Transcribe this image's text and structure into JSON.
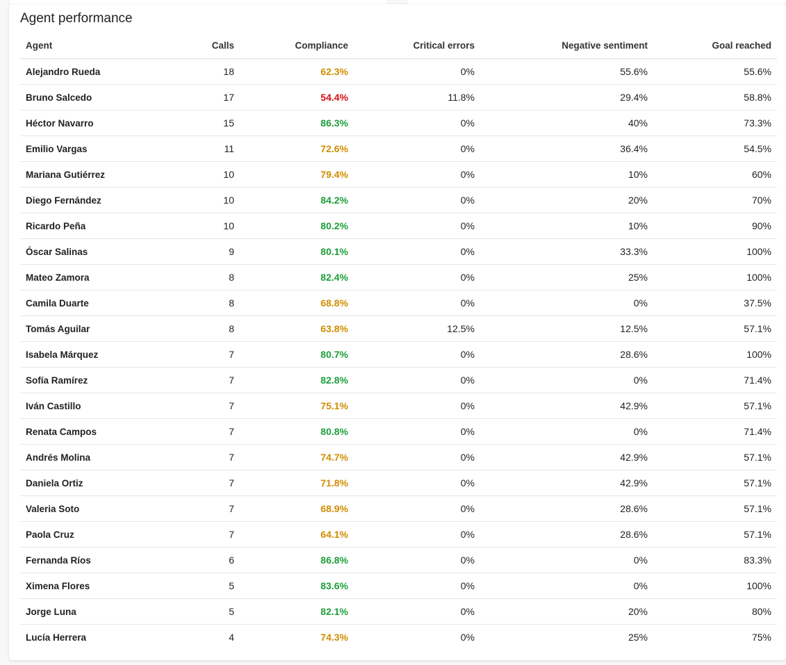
{
  "title": "Agent performance",
  "colors": {
    "good": "#1e9e3a",
    "warn": "#d18d00",
    "bad": "#d50f14"
  },
  "columns": [
    "Agent",
    "Calls",
    "Compliance",
    "Critical errors",
    "Negative sentiment",
    "Goal reached"
  ],
  "rows": [
    {
      "agent": "Alejandro Rueda",
      "calls": "18",
      "compliance": "62.3%",
      "status": "warn",
      "critical": "0%",
      "negative": "55.6%",
      "goal": "55.6%"
    },
    {
      "agent": "Bruno Salcedo",
      "calls": "17",
      "compliance": "54.4%",
      "status": "bad",
      "critical": "11.8%",
      "negative": "29.4%",
      "goal": "58.8%"
    },
    {
      "agent": "Héctor Navarro",
      "calls": "15",
      "compliance": "86.3%",
      "status": "good",
      "critical": "0%",
      "negative": "40%",
      "goal": "73.3%"
    },
    {
      "agent": "Emilio Vargas",
      "calls": "11",
      "compliance": "72.6%",
      "status": "warn",
      "critical": "0%",
      "negative": "36.4%",
      "goal": "54.5%"
    },
    {
      "agent": "Mariana Gutiérrez",
      "calls": "10",
      "compliance": "79.4%",
      "status": "warn",
      "critical": "0%",
      "negative": "10%",
      "goal": "60%"
    },
    {
      "agent": "Diego Fernández",
      "calls": "10",
      "compliance": "84.2%",
      "status": "good",
      "critical": "0%",
      "negative": "20%",
      "goal": "70%"
    },
    {
      "agent": "Ricardo Peña",
      "calls": "10",
      "compliance": "80.2%",
      "status": "good",
      "critical": "0%",
      "negative": "10%",
      "goal": "90%"
    },
    {
      "agent": "Óscar Salinas",
      "calls": "9",
      "compliance": "80.1%",
      "status": "good",
      "critical": "0%",
      "negative": "33.3%",
      "goal": "100%"
    },
    {
      "agent": "Mateo Zamora",
      "calls": "8",
      "compliance": "82.4%",
      "status": "good",
      "critical": "0%",
      "negative": "25%",
      "goal": "100%"
    },
    {
      "agent": "Camila Duarte",
      "calls": "8",
      "compliance": "68.8%",
      "status": "warn",
      "critical": "0%",
      "negative": "0%",
      "goal": "37.5%"
    },
    {
      "agent": "Tomás Aguilar",
      "calls": "8",
      "compliance": "63.8%",
      "status": "warn",
      "critical": "12.5%",
      "negative": "12.5%",
      "goal": "57.1%"
    },
    {
      "agent": "Isabela Márquez",
      "calls": "7",
      "compliance": "80.7%",
      "status": "good",
      "critical": "0%",
      "negative": "28.6%",
      "goal": "100%"
    },
    {
      "agent": "Sofía Ramírez",
      "calls": "7",
      "compliance": "82.8%",
      "status": "good",
      "critical": "0%",
      "negative": "0%",
      "goal": "71.4%"
    },
    {
      "agent": "Iván Castillo",
      "calls": "7",
      "compliance": "75.1%",
      "status": "warn",
      "critical": "0%",
      "negative": "42.9%",
      "goal": "57.1%"
    },
    {
      "agent": "Renata Campos",
      "calls": "7",
      "compliance": "80.8%",
      "status": "good",
      "critical": "0%",
      "negative": "0%",
      "goal": "71.4%"
    },
    {
      "agent": "Andrés Molina",
      "calls": "7",
      "compliance": "74.7%",
      "status": "warn",
      "critical": "0%",
      "negative": "42.9%",
      "goal": "57.1%"
    },
    {
      "agent": "Daniela Ortiz",
      "calls": "7",
      "compliance": "71.8%",
      "status": "warn",
      "critical": "0%",
      "negative": "42.9%",
      "goal": "57.1%"
    },
    {
      "agent": "Valeria Soto",
      "calls": "7",
      "compliance": "68.9%",
      "status": "warn",
      "critical": "0%",
      "negative": "28.6%",
      "goal": "57.1%"
    },
    {
      "agent": "Paola Cruz",
      "calls": "7",
      "compliance": "64.1%",
      "status": "warn",
      "critical": "0%",
      "negative": "28.6%",
      "goal": "57.1%"
    },
    {
      "agent": "Fernanda Ríos",
      "calls": "6",
      "compliance": "86.8%",
      "status": "good",
      "critical": "0%",
      "negative": "0%",
      "goal": "83.3%"
    },
    {
      "agent": "Ximena Flores",
      "calls": "5",
      "compliance": "83.6%",
      "status": "good",
      "critical": "0%",
      "negative": "0%",
      "goal": "100%"
    },
    {
      "agent": "Jorge Luna",
      "calls": "5",
      "compliance": "82.1%",
      "status": "good",
      "critical": "0%",
      "negative": "20%",
      "goal": "80%"
    },
    {
      "agent": "Lucía Herrera",
      "calls": "4",
      "compliance": "74.3%",
      "status": "warn",
      "critical": "0%",
      "negative": "25%",
      "goal": "75%"
    }
  ]
}
